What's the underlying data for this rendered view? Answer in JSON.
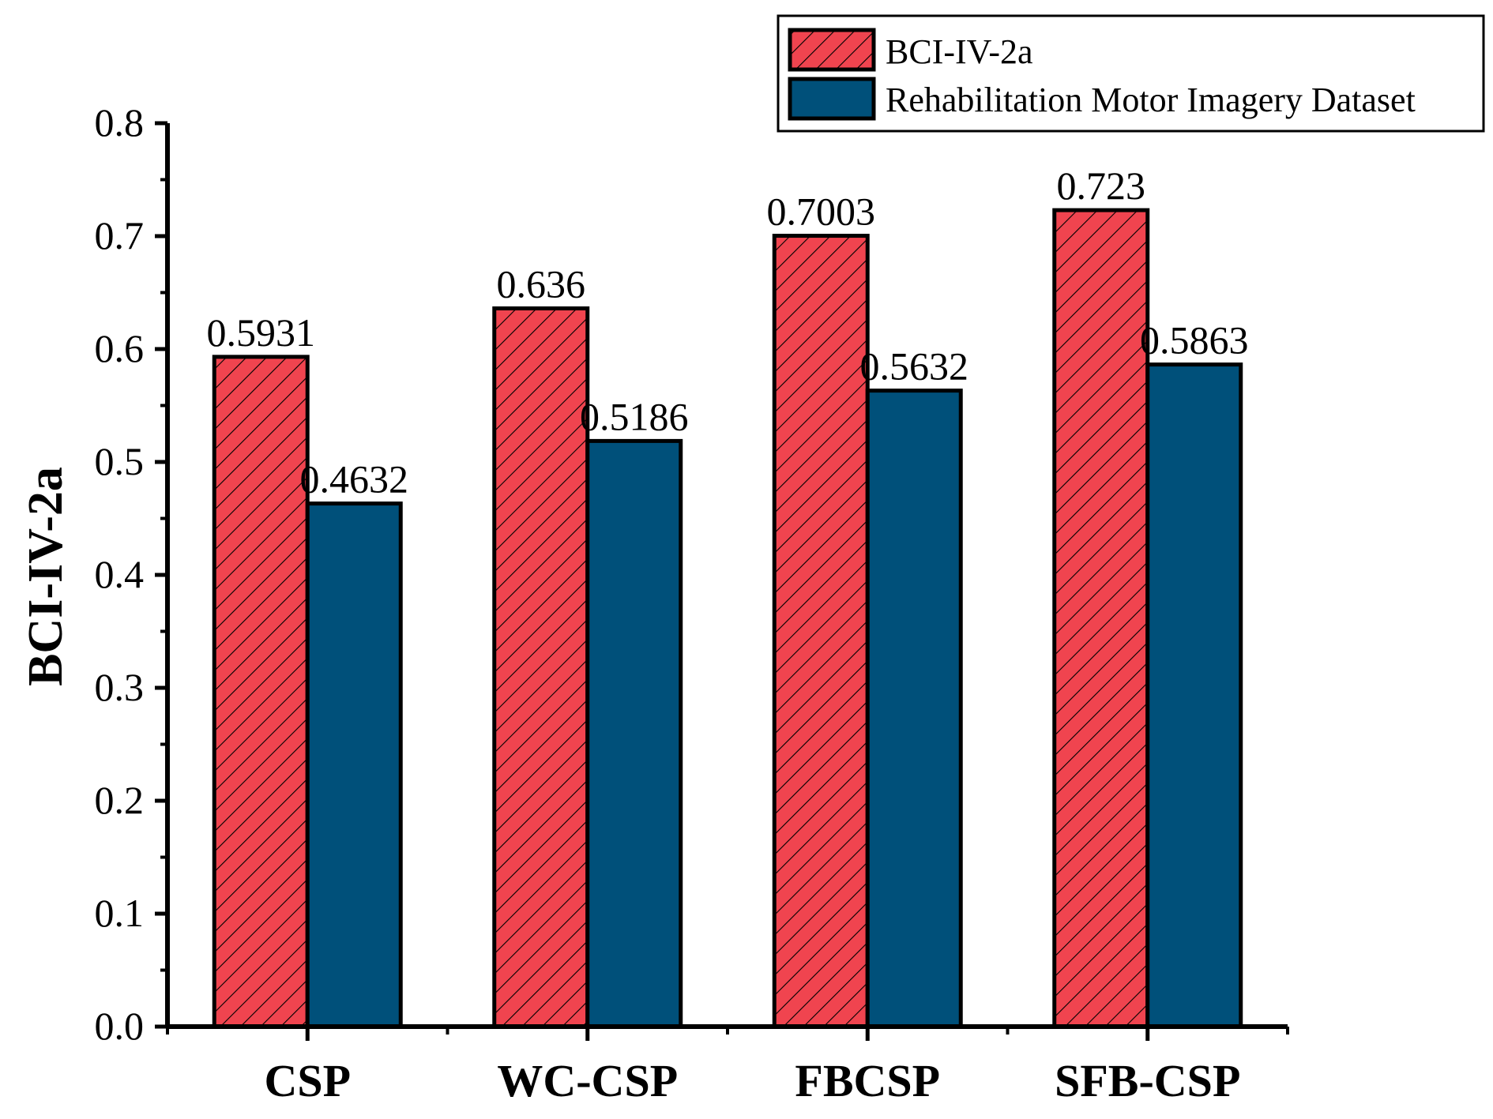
{
  "chart_data": {
    "type": "bar",
    "title": "",
    "xlabel": "",
    "ylabel": "BCI-IV-2a",
    "ylim": [
      0,
      0.8
    ],
    "yticks": [
      "0.0",
      "0.1",
      "0.2",
      "0.3",
      "0.4",
      "0.5",
      "0.6",
      "0.7",
      "0.8"
    ],
    "categories": [
      "CSP",
      "WC-CSP",
      "FBCSP",
      "SFB-CSP"
    ],
    "series": [
      {
        "name": "BCI-IV-2a",
        "color": "#f0444f",
        "pattern": "hatched",
        "values": [
          0.5931,
          0.636,
          0.7003,
          0.723
        ],
        "labels": [
          "0.5931",
          "0.636",
          "0.7003",
          "0.723"
        ]
      },
      {
        "name": "Rehabilitation Motor Imagery Dataset",
        "color": "#00507a",
        "pattern": "solid",
        "values": [
          0.4632,
          0.5186,
          0.5632,
          0.5863
        ],
        "labels": [
          "0.4632",
          "0.5186",
          "0.5632",
          "0.5863"
        ]
      }
    ],
    "legend": {
      "position": "top-right",
      "entries": [
        "BCI-IV-2a",
        "Rehabilitation Motor Imagery Dataset"
      ]
    }
  }
}
